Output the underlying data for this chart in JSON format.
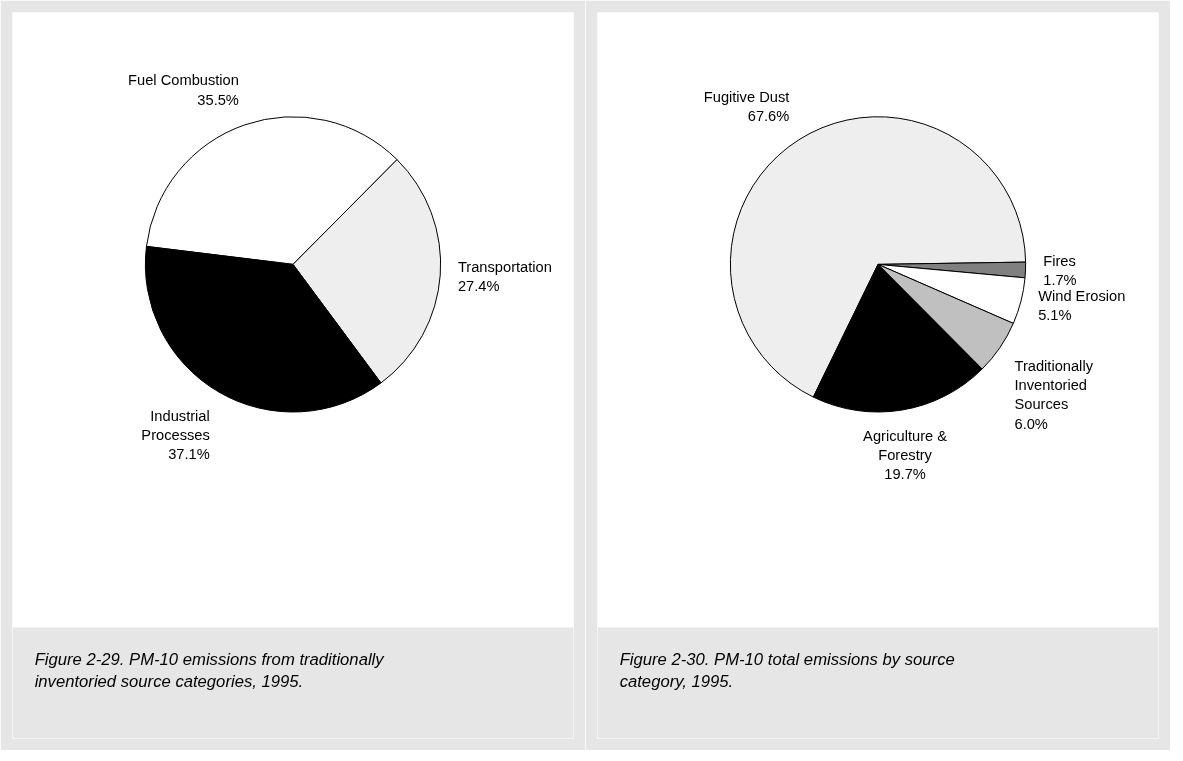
{
  "chart_data": [
    {
      "type": "pie",
      "title": "Figure 2-29.  PM-10 emissions from traditionally inventoried source categories, 1995.",
      "categories": [
        "Fuel Combustion",
        "Transportation",
        "Industrial Processes"
      ],
      "values": [
        35.5,
        27.4,
        37.1
      ],
      "colors": [
        "#ffffff",
        "#eeeeee",
        "#000000"
      ],
      "value_labels": [
        "35.5%",
        "27.4%",
        "37.1%"
      ]
    },
    {
      "type": "pie",
      "title": "Figure 2-30.  PM-10 total emissions by source category, 1995.",
      "categories": [
        "Fugitive Dust",
        "Fires",
        "Wind Erosion",
        "Traditionally Inventoried Sources",
        "Agriculture & Forestry"
      ],
      "values": [
        67.6,
        1.7,
        5.1,
        6.0,
        19.7
      ],
      "colors": [
        "#eeeeee",
        "#808080",
        "#ffffff",
        "#c0c0c0",
        "#000000"
      ],
      "value_labels": [
        "67.6%",
        "1.7%",
        "5.1%",
        "6.0%",
        "19.7%"
      ]
    }
  ]
}
